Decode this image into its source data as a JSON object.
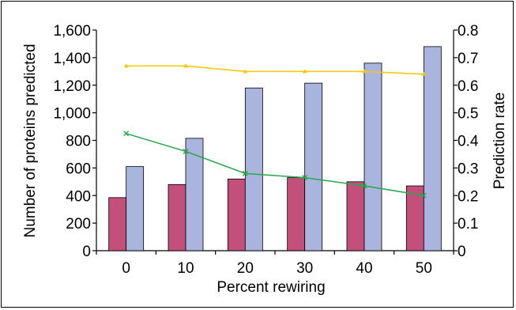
{
  "chart_data": {
    "type": "bar",
    "title": "",
    "xlabel": "Percent rewiring",
    "ylabel_left": "Number of proteins predicted",
    "ylabel_right": "Prediction rate",
    "categories": [
      "0",
      "10",
      "20",
      "30",
      "40",
      "50"
    ],
    "ylim_left": [
      0,
      1600
    ],
    "ylim_right": [
      0,
      0.8
    ],
    "y_ticks_left": [
      "0",
      "200",
      "400",
      "600",
      "800",
      "1,000",
      "1,200",
      "1,400",
      "1,600"
    ],
    "y_ticks_right": [
      "0",
      "0.1",
      "0.2",
      "0.3",
      "0.4",
      "0.5",
      "0.6",
      "0.7",
      "0.8"
    ],
    "bar_series": [
      {
        "axis": "left",
        "color": "#c2507a",
        "values": [
          385,
          480,
          520,
          530,
          500,
          470
        ]
      },
      {
        "axis": "left",
        "color": "#aab5de",
        "values": [
          610,
          815,
          1180,
          1215,
          1360,
          1480
        ]
      }
    ],
    "line_series": [
      {
        "axis": "right",
        "color": "#f5c800",
        "marker": "triangle",
        "values": [
          0.67,
          0.67,
          0.65,
          0.65,
          0.65,
          0.64
        ]
      },
      {
        "axis": "right",
        "color": "#27a84a",
        "marker": "x",
        "values": [
          0.425,
          0.36,
          0.28,
          0.265,
          0.235,
          0.2
        ]
      }
    ],
    "grid": false,
    "legend": "none"
  }
}
